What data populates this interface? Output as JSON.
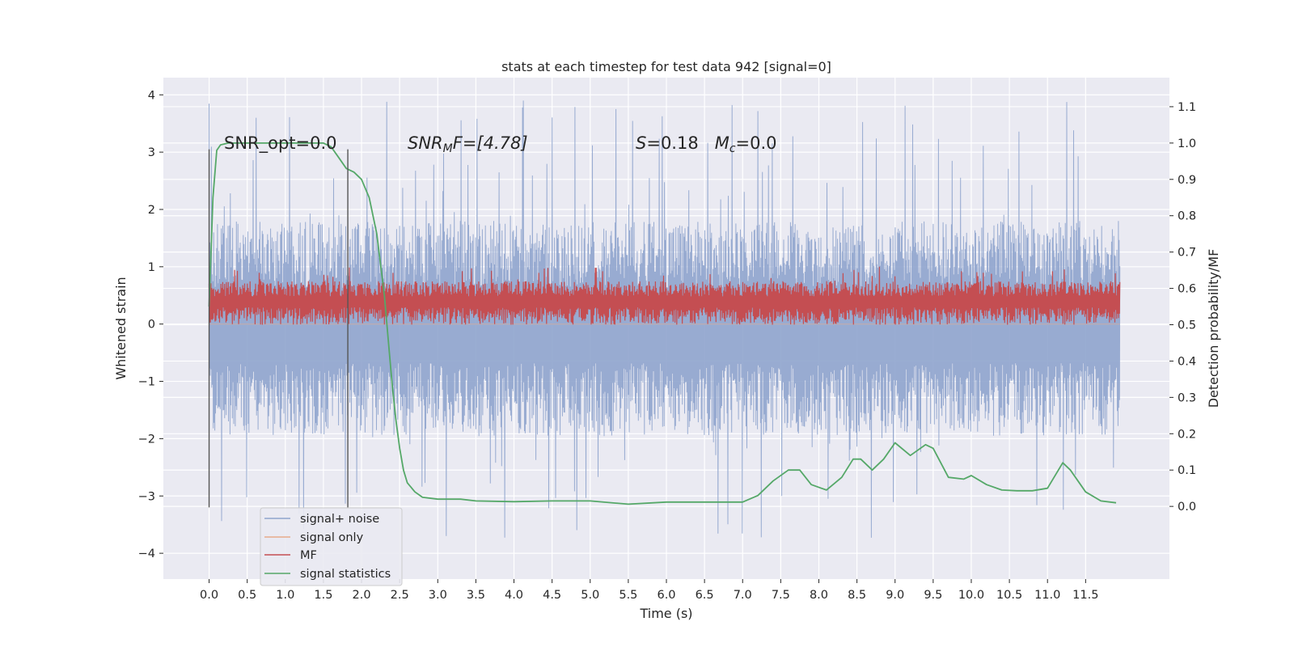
{
  "chart_data": {
    "type": "line",
    "title": "stats at each timestep for test data 942 [signal=0]",
    "xlabel": "Time (s)",
    "ylabel_left": "Whitened strain",
    "ylabel_right": "Detection probability/MF",
    "xlim": [
      -0.6,
      12.6
    ],
    "ylim_left": [
      -4.45,
      4.3
    ],
    "ylim_right": [
      -0.2,
      1.18
    ],
    "x_ticks": [
      "0.0",
      "0.5",
      "1.0",
      "1.5",
      "2.0",
      "2.5",
      "3.0",
      "3.5",
      "4.0",
      "4.5",
      "5.0",
      "5.5",
      "6.0",
      "6.5",
      "7.0",
      "7.5",
      "8.0",
      "8.5",
      "9.0",
      "9.5",
      "10.0",
      "10.5",
      "11.0",
      "11.5"
    ],
    "y_ticks_left": [
      "−4",
      "−3",
      "−2",
      "−1",
      "0",
      "1",
      "2",
      "3",
      "4"
    ],
    "y_ticks_right": [
      "0.0",
      "0.1",
      "0.2",
      "0.3",
      "0.4",
      "0.5",
      "0.6",
      "0.7",
      "0.8",
      "0.9",
      "1.0",
      "1.1"
    ],
    "grid": true,
    "annotations": {
      "snr_opt": "SNR_opt=0.0",
      "snr_mf_main": "SNR",
      "snr_mf_sub": "M",
      "snr_mf_rest": "F=[4.78]",
      "s_label": "S",
      "s_value": "=0.18",
      "mc_label": "M",
      "mc_sub": "c",
      "mc_value": "=0.0"
    },
    "vertical_lines_x": [
      0.0,
      1.82
    ],
    "legend": {
      "placement": "lower-left",
      "entries": [
        "signal+ noise",
        "signal only",
        "MF",
        "signal statistics"
      ]
    },
    "series": [
      {
        "name": "signal+ noise",
        "axis": "left",
        "color": "#8fa4cd",
        "x_range": [
          0.0,
          11.95
        ],
        "envelope": {
          "core_low": -1.95,
          "core_high": 1.8,
          "peak_high": 3.9,
          "peak_low": -4.1
        }
      },
      {
        "name": "signal only",
        "axis": "left",
        "color": "#e8a98a",
        "x": [
          0.0,
          11.95
        ],
        "y": [
          0.0,
          0.0
        ]
      },
      {
        "name": "MF",
        "axis": "right",
        "color": "#c44e52",
        "x_range": [
          0.0,
          11.95
        ],
        "envelope": {
          "low": 0.5,
          "high": 0.62,
          "peak": 0.66
        }
      },
      {
        "name": "signal statistics",
        "axis": "right",
        "color": "#55a868",
        "x": [
          0.0,
          0.05,
          0.1,
          0.15,
          0.25,
          0.5,
          1.0,
          1.5,
          1.6,
          1.7,
          1.8,
          1.9,
          2.0,
          2.1,
          2.2,
          2.3,
          2.35,
          2.4,
          2.45,
          2.5,
          2.55,
          2.6,
          2.7,
          2.8,
          3.0,
          3.3,
          3.5,
          4.0,
          4.5,
          5.0,
          5.5,
          6.0,
          6.5,
          7.0,
          7.2,
          7.4,
          7.6,
          7.75,
          7.9,
          8.1,
          8.3,
          8.45,
          8.55,
          8.7,
          8.85,
          9.0,
          9.2,
          9.4,
          9.5,
          9.7,
          9.9,
          10.0,
          10.2,
          10.4,
          10.6,
          10.8,
          11.0,
          11.2,
          11.3,
          11.5,
          11.7,
          11.9
        ],
        "y": [
          0.55,
          0.85,
          0.98,
          0.995,
          1.0,
          1.0,
          1.0,
          1.0,
          0.99,
          0.96,
          0.93,
          0.92,
          0.9,
          0.85,
          0.75,
          0.58,
          0.46,
          0.34,
          0.24,
          0.16,
          0.1,
          0.065,
          0.04,
          0.025,
          0.02,
          0.02,
          0.015,
          0.013,
          0.015,
          0.015,
          0.006,
          0.012,
          0.012,
          0.012,
          0.03,
          0.07,
          0.1,
          0.1,
          0.06,
          0.045,
          0.08,
          0.13,
          0.13,
          0.1,
          0.13,
          0.175,
          0.14,
          0.17,
          0.16,
          0.08,
          0.075,
          0.085,
          0.06,
          0.045,
          0.043,
          0.043,
          0.05,
          0.12,
          0.1,
          0.04,
          0.015,
          0.01
        ]
      }
    ]
  }
}
